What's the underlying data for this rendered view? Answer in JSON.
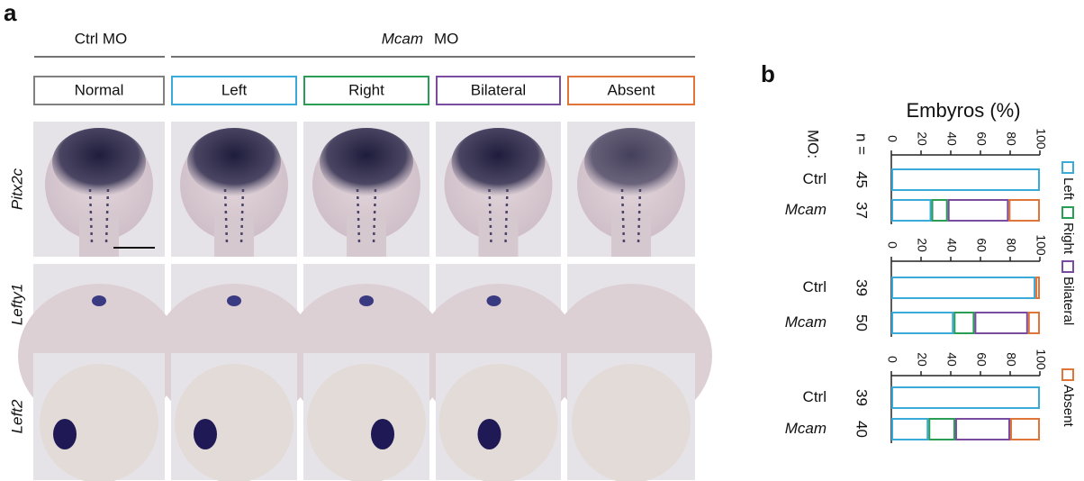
{
  "panel_a": {
    "label": "a",
    "group_ctrl": "Ctrl MO",
    "group_mcam": {
      "gene": "Mcam",
      "suffix": "MO"
    },
    "columns": [
      "Normal",
      "Left",
      "Right",
      "Bilateral",
      "Absent"
    ],
    "rows": [
      "Pitx2c",
      "Lefty1",
      "Left2"
    ]
  },
  "panel_b": {
    "label": "b",
    "axis_title": "Embyros (%)",
    "mo_header": "MO:",
    "n_header": "n ="
  },
  "chart_data": [
    {
      "type": "bar",
      "orientation": "horizontal",
      "stacked": true,
      "categories": [
        "Ctrl",
        "Mcam"
      ],
      "n": [
        45,
        37
      ],
      "xlim": [
        0,
        100
      ],
      "xticks": [
        0,
        20,
        40,
        60,
        80,
        100
      ],
      "series": [
        {
          "name": "Left",
          "color": "#3aaad8",
          "values": [
            100,
            27
          ]
        },
        {
          "name": "Right",
          "color": "#2a9d55",
          "values": [
            0,
            11
          ]
        },
        {
          "name": "Bilateral",
          "color": "#7a4ca0",
          "values": [
            0,
            41
          ]
        },
        {
          "name": "Absent",
          "color": "#e0753a",
          "values": [
            0,
            21
          ]
        }
      ]
    },
    {
      "type": "bar",
      "orientation": "horizontal",
      "stacked": true,
      "categories": [
        "Ctrl",
        "Mcam"
      ],
      "n": [
        39,
        50
      ],
      "xlim": [
        0,
        100
      ],
      "xticks": [
        0,
        20,
        40,
        60,
        80,
        100
      ],
      "series": [
        {
          "name": "Left",
          "color": "#3aaad8",
          "values": [
            97,
            42
          ]
        },
        {
          "name": "Right",
          "color": "#2a9d55",
          "values": [
            0,
            14
          ]
        },
        {
          "name": "Bilateral",
          "color": "#7a4ca0",
          "values": [
            0,
            36
          ]
        },
        {
          "name": "Absent",
          "color": "#e0753a",
          "values": [
            3,
            8
          ]
        }
      ]
    },
    {
      "type": "bar",
      "orientation": "horizontal",
      "stacked": true,
      "categories": [
        "Ctrl",
        "Mcam"
      ],
      "n": [
        39,
        40
      ],
      "xlim": [
        0,
        100
      ],
      "xticks": [
        0,
        20,
        40,
        60,
        80,
        100
      ],
      "series": [
        {
          "name": "Left",
          "color": "#3aaad8",
          "values": [
            100,
            25
          ]
        },
        {
          "name": "Right",
          "color": "#2a9d55",
          "values": [
            0,
            18
          ]
        },
        {
          "name": "Bilateral",
          "color": "#7a4ca0",
          "values": [
            0,
            37
          ]
        },
        {
          "name": "Absent",
          "color": "#e0753a",
          "values": [
            0,
            20
          ]
        }
      ]
    }
  ]
}
